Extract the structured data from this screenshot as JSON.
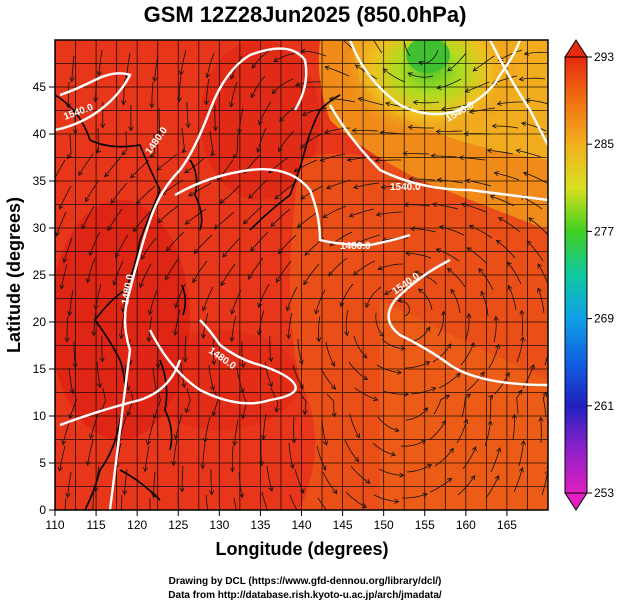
{
  "title": "GSM 12Z28Jun2025 (850.0hPa)",
  "xlabel": "Longitude (degrees)",
  "ylabel": "Latitude  (degrees)",
  "x_ticks": [
    "110",
    "115",
    "120",
    "125",
    "130",
    "135",
    "140",
    "145",
    "150",
    "155",
    "160",
    "165"
  ],
  "y_ticks": [
    "0",
    "5",
    "10",
    "15",
    "20",
    "25",
    "30",
    "35",
    "40",
    "45"
  ],
  "colorbar_ticks": [
    "293",
    "285",
    "277",
    "269",
    "261",
    "253"
  ],
  "contour_labels": [
    "1480.0",
    "1480.0",
    "1480.0",
    "1480.0",
    "1540.0",
    "1540.0",
    "1540.0",
    "1540.0"
  ],
  "credits": {
    "line1": "Drawing by DCL (https://www.gfd-dennou.org/library/dcl/)",
    "line2": "Data from http://database.rish.kyoto-u.ac.jp/arch/jmadata/"
  },
  "colors": {
    "warm": "#e8381a",
    "hot": "#d81c10",
    "orange": "#f06a10",
    "yellow": "#f0c020",
    "green": "#70d020",
    "contour": "#ffffff",
    "coast": "#000000"
  },
  "map": {
    "lon_range": [
      110,
      170
    ],
    "lat_range": [
      0,
      50
    ],
    "variable": "temperature (K)",
    "colorbar_range": [
      253,
      293
    ]
  }
}
